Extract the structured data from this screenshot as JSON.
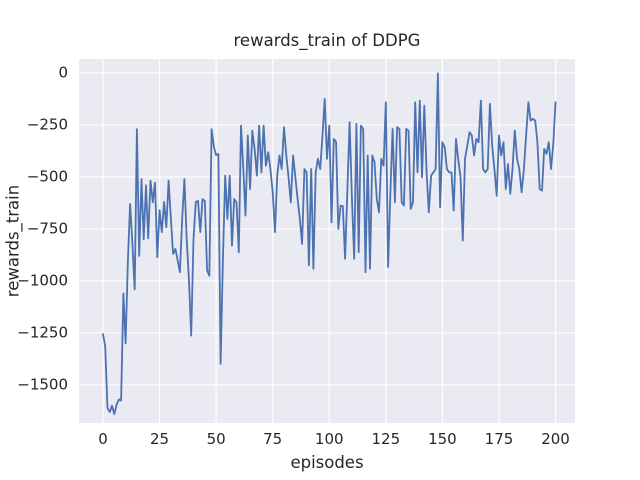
{
  "chart_data": {
    "type": "line",
    "title": "rewards_train of DDPG",
    "xlabel": "episodes",
    "ylabel": "rewards_train",
    "xticks": [
      0,
      25,
      50,
      75,
      100,
      125,
      150,
      175,
      200
    ],
    "yticks": [
      0,
      -250,
      -500,
      -750,
      -1000,
      -1250,
      -1500
    ],
    "xlim": [
      -10.6,
      208.6
    ],
    "ylim": [
      -1683,
      67
    ],
    "grid": true,
    "legend_position": "none",
    "style": {
      "figure_background": "#FFFFFF",
      "plot_background": "#EAEAF2",
      "grid_color": "#FFFFFF",
      "line_color": "#4C72B0",
      "text_color": "#262626"
    },
    "series": [
      {
        "name": "rewards_train",
        "x_start": 0,
        "x_step": 1,
        "values": [
          -1255,
          -1315,
          -1612,
          -1630,
          -1600,
          -1640,
          -1595,
          -1570,
          -1575,
          -1060,
          -1300,
          -900,
          -630,
          -820,
          -1040,
          -270,
          -880,
          -510,
          -800,
          -540,
          -795,
          -518,
          -622,
          -527,
          -886,
          -660,
          -765,
          -620,
          -742,
          -518,
          -702,
          -870,
          -846,
          -902,
          -958,
          -700,
          -510,
          -800,
          -1000,
          -1263,
          -800,
          -620,
          -615,
          -765,
          -607,
          -615,
          -950,
          -975,
          -270,
          -355,
          -395,
          -390,
          -1399,
          -900,
          -494,
          -702,
          -494,
          -830,
          -606,
          -622,
          -862,
          -253,
          -461,
          -686,
          -301,
          -558,
          -277,
          -365,
          -494,
          -253,
          -478,
          -253,
          -446,
          -381,
          -462,
          -573,
          -765,
          -494,
          -397,
          -462,
          -261,
          -397,
          -500,
          -622,
          -397,
          -500,
          -606,
          -700,
          -822,
          -462,
          -478,
          -926,
          -462,
          -942,
          -478,
          -413,
          -462,
          -300,
          -125,
          -413,
          -253,
          -718,
          -317,
          -333,
          -750,
          -638,
          -640,
          -894,
          -560,
          -237,
          -600,
          -894,
          -245,
          -862,
          -253,
          -269,
          -958,
          -397,
          -942,
          -397,
          -429,
          -606,
          -670,
          -413,
          -446,
          -141,
          -933,
          -573,
          -269,
          -622,
          -261,
          -269,
          -622,
          -638,
          -269,
          -277,
          -654,
          -622,
          -141,
          -478,
          -133,
          -502,
          -157,
          -478,
          -670,
          -494,
          -478,
          -462,
          -2,
          -646,
          -333,
          -357,
          -462,
          -478,
          -478,
          -662,
          -317,
          -413,
          -500,
          -806,
          -413,
          -350,
          -285,
          -301,
          -397,
          -317,
          -333,
          -133,
          -462,
          -478,
          -462,
          -149,
          -350,
          -462,
          -590,
          -301,
          -397,
          -333,
          -558,
          -438,
          -581,
          -462,
          -277,
          -413,
          -462,
          -574,
          -462,
          -301,
          -141,
          -229,
          -221,
          -229,
          -333,
          -558,
          -566,
          -365,
          -389,
          -333,
          -462,
          -341,
          -141
        ]
      }
    ]
  }
}
